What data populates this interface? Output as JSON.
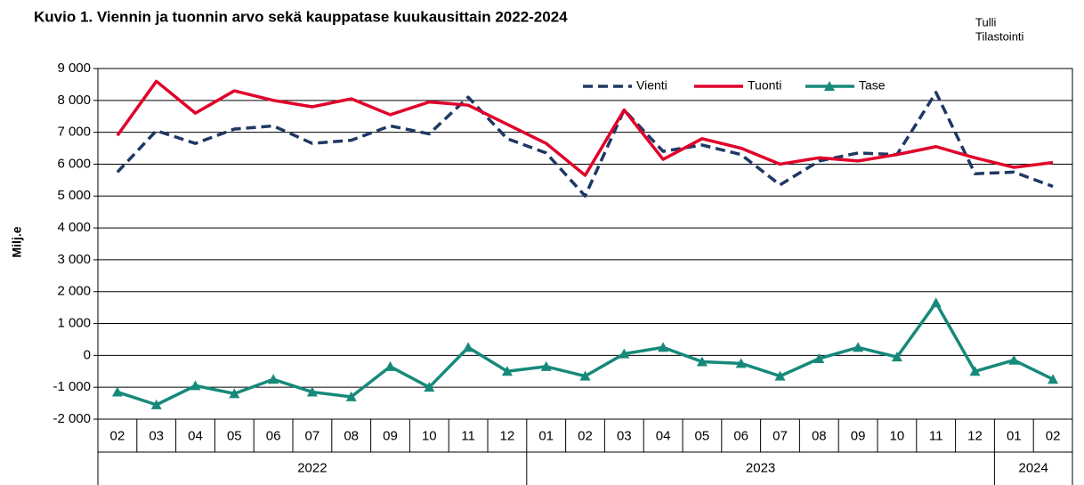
{
  "chart_data": {
    "type": "line",
    "title": "Kuvio 1. Viennin ja tuonnin arvo sekä kauppatase kuukausittain 2022-2024",
    "source": [
      "Tulli",
      "Tilastointi"
    ],
    "ylabel": "Milj.e",
    "groups": [
      {
        "label": "2022",
        "categories": [
          "02",
          "03",
          "04",
          "05",
          "06",
          "07",
          "08",
          "09",
          "10",
          "11",
          "12"
        ]
      },
      {
        "label": "2023",
        "categories": [
          "01",
          "02",
          "03",
          "04",
          "05",
          "06",
          "07",
          "08",
          "09",
          "10",
          "11",
          "12"
        ]
      },
      {
        "label": "2024",
        "categories": [
          "01",
          "02"
        ]
      }
    ],
    "ylim": [
      -2000,
      9000
    ],
    "yticks": [
      {
        "value": 9000,
        "label": "9 000"
      },
      {
        "value": 8000,
        "label": "8 000"
      },
      {
        "value": 7000,
        "label": "7 000"
      },
      {
        "value": 6000,
        "label": "6 000"
      },
      {
        "value": 5000,
        "label": "5 000"
      },
      {
        "value": 4000,
        "label": "4 000"
      },
      {
        "value": 3000,
        "label": "3 000"
      },
      {
        "value": 2000,
        "label": "2 000"
      },
      {
        "value": 1000,
        "label": "1 000"
      },
      0,
      {
        "value": -1000,
        "label": "-1 000"
      },
      {
        "value": -2000,
        "label": "-2 000"
      }
    ],
    "grid": true,
    "legend": "top-right",
    "series": [
      {
        "name": "Vienti",
        "color": "#1f3864",
        "dashed": true,
        "values": [
          5750,
          7050,
          6650,
          7100,
          7200,
          6650,
          6750,
          7200,
          6950,
          8100,
          6800,
          6350,
          5000,
          7700,
          6400,
          6600,
          6300,
          5350,
          6100,
          6350,
          6300,
          8250,
          5700,
          5750,
          5300
        ]
      },
      {
        "name": "Tuonti",
        "color": "#e0002a",
        "values": [
          6900,
          8600,
          7600,
          8300,
          8000,
          7800,
          8050,
          7550,
          7950,
          7850,
          7250,
          6650,
          5650,
          7700,
          6150,
          6800,
          6500,
          6000,
          6200,
          6100,
          6300,
          6550,
          6200,
          5900,
          6050
        ]
      },
      {
        "name": "Tase",
        "color": "#16897a",
        "marker": "triangle",
        "values": [
          -1150,
          -1550,
          -950,
          -1200,
          -750,
          -1150,
          -1300,
          -350,
          -1000,
          250,
          -500,
          -350,
          -650,
          50,
          250,
          -200,
          -250,
          -650,
          -100,
          250,
          -50,
          1650,
          -500,
          -150,
          -750
        ]
      }
    ]
  }
}
